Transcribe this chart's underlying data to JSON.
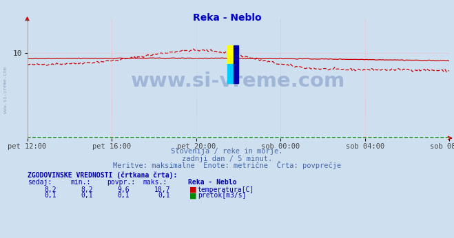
{
  "title": "Reka - Neblo",
  "title_color": "#0000cc",
  "bg_color": "#cee0f0",
  "plot_bg_color": "#cee0f0",
  "grid_color": "#ffaaaa",
  "x_tick_labels": [
    "pet 12:00",
    "pet 16:00",
    "pet 20:00",
    "sob 00:00",
    "sob 04:00",
    "sob 08:00"
  ],
  "x_tick_positions": [
    0.0,
    0.2,
    0.4,
    0.6,
    0.8,
    1.0
  ],
  "ylim": [
    0,
    14
  ],
  "y_tick_val": 10,
  "subtitle_line1": "Slovenija / reke in morje.",
  "subtitle_line2": "zadnji dan / 5 minut.",
  "subtitle_line3": "Meritve: maksimalne  Enote: metrične  Črta: povprečje",
  "subtitle_color": "#4466aa",
  "watermark_text": "www.si-vreme.com",
  "watermark_color": "#1a3a8a",
  "watermark_alpha": 0.25,
  "table_header": "ZGODOVINSKE VREDNOSTI (črtkana črta):",
  "table_col_headers": [
    "sedaj:",
    "min.:",
    "povpr.:",
    "maks.:",
    "Reka - Neblo"
  ],
  "table_row1_vals": [
    "8,2",
    "8,2",
    "9,6",
    "10,7"
  ],
  "table_row1_label": "temperatura[C]",
  "table_row1_color": "#cc0000",
  "table_row2_vals": [
    "0,1",
    "0,1",
    "0,1",
    "0,1"
  ],
  "table_row2_label": "pretok[m3/s]",
  "table_row2_color": "#008800",
  "temp_line_color": "#cc0000",
  "flow_line_color": "#008800",
  "axis_arrow_color": "#cc0000",
  "side_text": "www.si-vreme.com",
  "side_text_color": "#8899bb"
}
